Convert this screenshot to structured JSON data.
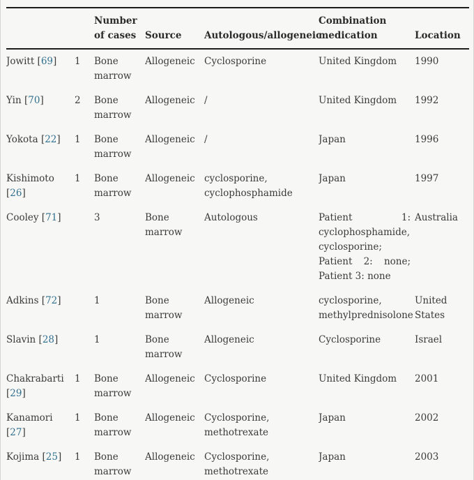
{
  "colors": {
    "citation_link": "#31708f",
    "background": "#f7f7f5",
    "text": "#3a3a3a",
    "rule": "#1c1c1c"
  },
  "table": {
    "headers": [
      "",
      "",
      "Number of cases",
      "Source",
      "Autologous/allogeneic",
      "Combination medication",
      "Location"
    ],
    "rows": [
      {
        "author": "Jowitt",
        "ref": "69",
        "cells": [
          "1",
          "Bone marrow",
          "Allogeneic",
          "Cyclosporine",
          "United Kingdom",
          "1990"
        ]
      },
      {
        "author": "Yin",
        "ref": "70",
        "cells": [
          "2",
          "Bone marrow",
          "Allogeneic",
          "/",
          "United Kingdom",
          "1992"
        ]
      },
      {
        "author": "Yokota",
        "ref": "22",
        "cells": [
          "1",
          "Bone marrow",
          "Allogeneic",
          "/",
          "Japan",
          "1996"
        ]
      },
      {
        "author": "Kishimoto",
        "ref": "26",
        "cells": [
          "1",
          "Bone marrow",
          "Allogeneic",
          "cyclosporine, cyclophosphamide",
          "Japan",
          "1997"
        ]
      },
      {
        "author": "Cooley",
        "ref": "71",
        "cells": [
          "",
          "3",
          "Bone marrow",
          "Autologous",
          "Patient 1: cyclophosphamide, cyclosporine; Patient 2: none; Patient 3: none",
          "Australia"
        ]
      },
      {
        "author": "Adkins",
        "ref": "72",
        "cells": [
          "",
          "1",
          "Bone marrow",
          "Allogeneic",
          "cyclosporine, methylprednisolone",
          "United States"
        ]
      },
      {
        "author": "Slavin",
        "ref": "28",
        "cells": [
          "",
          "1",
          "Bone marrow",
          "Allogeneic",
          "Cyclosporine",
          "Israel"
        ]
      },
      {
        "author": "Chakrabarti",
        "ref": "29",
        "cells": [
          "1",
          "Bone marrow",
          "Allogeneic",
          "Cyclosporine",
          "United Kingdom",
          "2001"
        ]
      },
      {
        "author": "Kanamori",
        "ref": "27",
        "cells": [
          "1",
          "Bone marrow",
          "Allogeneic",
          "Cyclosporine, methotrexate",
          "Japan",
          "2002"
        ]
      },
      {
        "author": "Kojima",
        "ref": "25",
        "cells": [
          "1",
          "Bone marrow",
          "Allogeneic",
          "Cyclosporine, methotrexate",
          "Japan",
          "2003"
        ]
      }
    ]
  }
}
